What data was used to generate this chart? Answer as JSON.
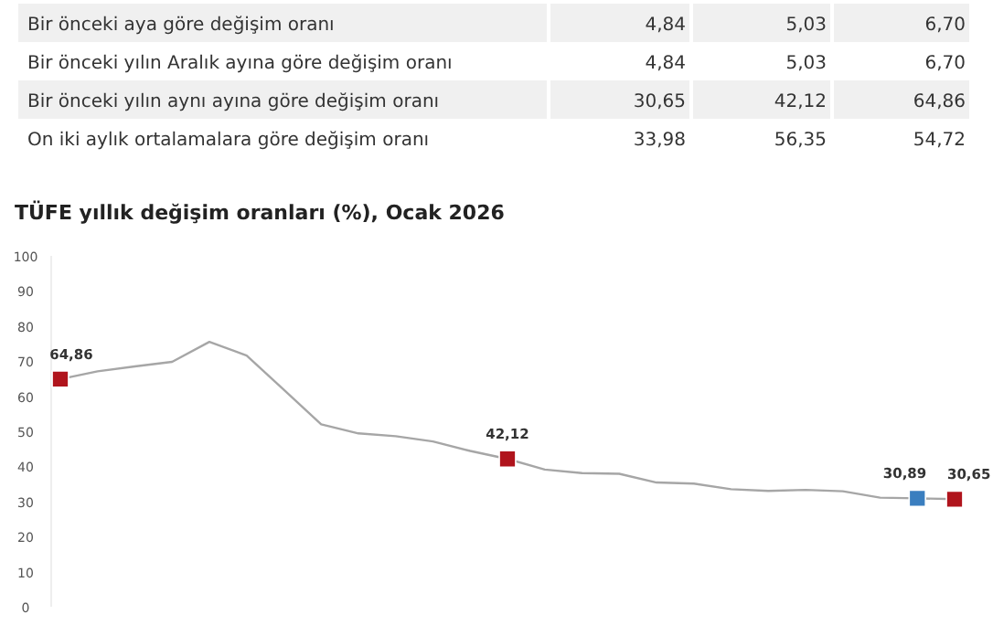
{
  "chart_data": [
    {
      "type": "other",
      "annotations": [
        "Bir önceki aya göre değişim oranı",
        "4,84",
        "5,03",
        "6,70",
        "Bir önceki yılın Aralık ayına göre değişim oranı",
        "4,84",
        "5,03",
        "6,70",
        "Bir önceki yılın aynı ayına göre değişim oranı",
        "30,65",
        "42,12",
        "64,86",
        "On iki aylık ortalamalara göre değişim oranı",
        "33,98",
        "56,35",
        "54,72"
      ]
    },
    {
      "type": "line",
      "title": "TÜFE yıllık değişim oranları (%), Ocak 2026",
      "categories": [
        null,
        null,
        null,
        null,
        null,
        null,
        null,
        null,
        null,
        null,
        null,
        null,
        null,
        null,
        null,
        null,
        null,
        null,
        null,
        null,
        null,
        null,
        null,
        null,
        null
      ],
      "series": [
        {
          "color": "#a6a6a6",
          "values": [
            64.86,
            67.1,
            68.5,
            69.8,
            75.5,
            71.6,
            61.8,
            52,
            49.4,
            48.6,
            47.1,
            44.4,
            42.12,
            39.1,
            38.1,
            37.9,
            35.4,
            35.1,
            33.5,
            33,
            33.3,
            32.9,
            31.1,
            30.89,
            30.65
          ]
        },
        {
          "type": "scatter",
          "marker": "square",
          "values": [
            64.86,
            null,
            null,
            null,
            null,
            null,
            null,
            null,
            null,
            null,
            null,
            null,
            42.12,
            null,
            null,
            null,
            null,
            null,
            null,
            null,
            null,
            null,
            null,
            30.89,
            30.65
          ],
          "colors": [
            "#b0141c",
            null,
            null,
            null,
            null,
            null,
            null,
            null,
            null,
            null,
            null,
            null,
            "#b0141c",
            null,
            null,
            null,
            null,
            null,
            null,
            null,
            null,
            null,
            null,
            "#3a7ebf",
            "#b0141c"
          ],
          "value_labels": [
            "64,86",
            null,
            null,
            null,
            null,
            null,
            null,
            null,
            null,
            null,
            null,
            null,
            "42,12",
            null,
            null,
            null,
            null,
            null,
            null,
            null,
            null,
            null,
            null,
            "30,89",
            "30,65"
          ]
        }
      ],
      "ylim": [
        0,
        100
      ],
      "yticks": [
        0,
        10,
        20,
        30,
        40,
        50,
        60,
        70,
        80,
        90,
        100
      ],
      "grid": false
    }
  ]
}
